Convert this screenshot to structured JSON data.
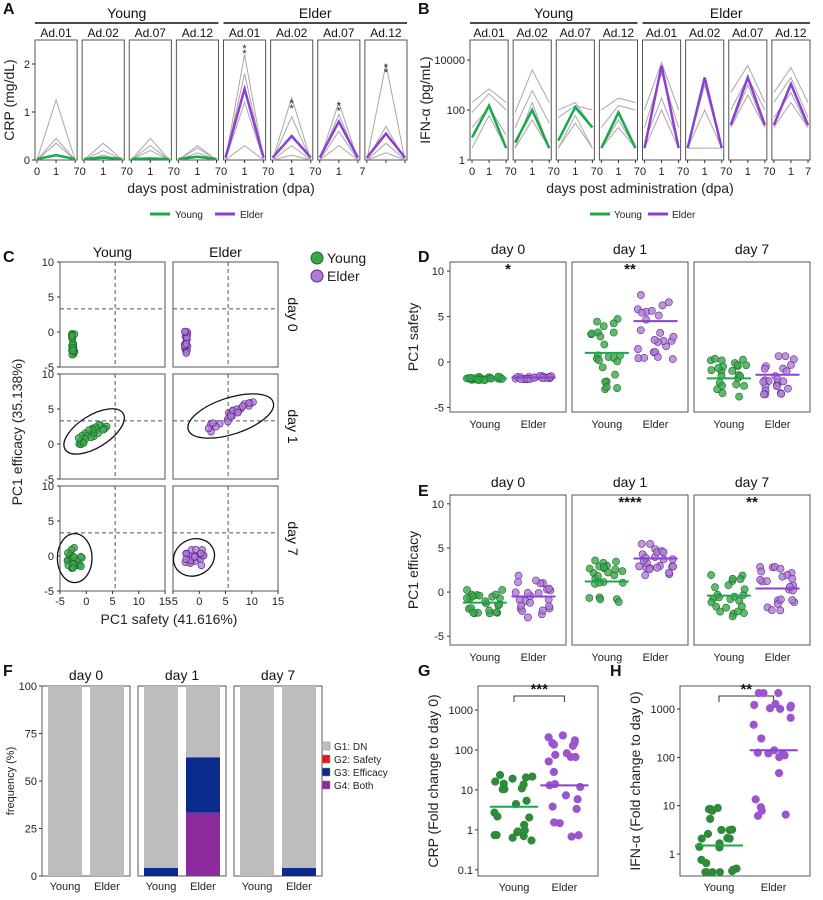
{
  "colors": {
    "young": "#1aa84a",
    "elder": "#8c3fd1",
    "young_pt": "#3aa84a",
    "elder_pt": "#b07ad8",
    "g1": "#bdbdbd",
    "g2": "#e31a1c",
    "g3": "#0a2a8c",
    "g4": "#8e2a9e",
    "gray_line": "#a8a8a8"
  },
  "panel_letters": [
    "A",
    "B",
    "C",
    "D",
    "E",
    "F",
    "G",
    "H"
  ],
  "chart_data": [
    {
      "id": "A",
      "type": "line",
      "groups": [
        "Young",
        "Elder"
      ],
      "subjects": [
        "Ad.01",
        "Ad.02",
        "Ad.07",
        "Ad.12",
        "Ad.01",
        "Ad.02",
        "Ad.07",
        "Ad.12"
      ],
      "x": [
        "0",
        "1",
        "7"
      ],
      "xticks_first": [
        "0",
        "1",
        "7"
      ],
      "xticks_rest": [
        "0",
        "1",
        "70",
        "1",
        "70",
        "1",
        "70",
        "1",
        "70",
        "1",
        "70",
        "1",
        "70",
        "1",
        "7"
      ],
      "xlabel": "days post administration (dpa)",
      "ylabel": "CRP (mg/dL)",
      "ylim": [
        0,
        2.5
      ],
      "yticks": [
        "0",
        "1",
        "2"
      ],
      "legend": [
        "Young",
        "Elder"
      ],
      "mean": [
        [
          0.02,
          0.1,
          0.02
        ],
        [
          0.02,
          0.05,
          0.02
        ],
        [
          0.02,
          0.03,
          0.02
        ],
        [
          0.02,
          0.07,
          0.02
        ],
        [
          0.05,
          1.48,
          0.05
        ],
        [
          0.05,
          0.5,
          0.05
        ],
        [
          0.05,
          0.8,
          0.05
        ],
        [
          0.05,
          0.55,
          0.05
        ]
      ],
      "individual": [
        [
          [
            0,
            1.25,
            0
          ],
          [
            0,
            0.45,
            0
          ],
          [
            0,
            0.35,
            0
          ],
          [
            0,
            0.1,
            0
          ]
        ],
        [
          [
            0,
            0.35,
            0
          ],
          [
            0,
            0.2,
            0
          ],
          [
            0,
            0.05,
            0
          ],
          [
            0,
            0.1,
            0
          ]
        ],
        [
          [
            0,
            0.45,
            0
          ],
          [
            0,
            0.3,
            0
          ],
          [
            0,
            0.05,
            0
          ],
          [
            0,
            0.2,
            0
          ]
        ],
        [
          [
            0,
            0.3,
            0
          ],
          [
            0,
            0.15,
            0
          ],
          [
            0,
            0.05,
            0
          ],
          [
            0,
            0.25,
            0
          ]
        ],
        [
          [
            0,
            2.2,
            0
          ],
          [
            0,
            1.8,
            0
          ],
          [
            0,
            1.2,
            0
          ],
          [
            0,
            0.3,
            0
          ]
        ],
        [
          [
            0,
            1.3,
            0
          ],
          [
            0,
            0.9,
            0
          ],
          [
            0,
            0.3,
            0
          ],
          [
            0,
            0.1,
            0
          ]
        ],
        [
          [
            0,
            1.2,
            0
          ],
          [
            0,
            0.95,
            0
          ],
          [
            0,
            0.6,
            0
          ],
          [
            0,
            0.3,
            0
          ]
        ],
        [
          [
            0,
            2.0,
            0
          ],
          [
            0,
            0.7,
            0
          ],
          [
            0,
            0.35,
            0
          ],
          [
            0,
            0.15,
            0
          ]
        ]
      ],
      "stars": [
        [
          4,
          2.25
        ],
        [
          5,
          1.1
        ],
        [
          6,
          1.05
        ],
        [
          7,
          1.85
        ]
      ]
    },
    {
      "id": "B",
      "type": "line",
      "yscale": "log",
      "groups": [
        "Young",
        "Elder"
      ],
      "subjects": [
        "Ad.01",
        "Ad.02",
        "Ad.07",
        "Ad.12",
        "Ad.01",
        "Ad.02",
        "Ad.07",
        "Ad.12"
      ],
      "x": [
        "0",
        "1",
        "7"
      ],
      "xticks": [
        "0",
        "1",
        "70",
        "1",
        "70",
        "1",
        "70",
        "1",
        "70",
        "1",
        "70",
        "1",
        "70",
        "1",
        "70",
        "1",
        "7"
      ],
      "xlabel": "days post administration (dpa)",
      "ylabel": "IFN-α (pg/mL)",
      "ylim": [
        1,
        40000
      ],
      "yticks": [
        "1",
        "100",
        "10000"
      ],
      "legend": [
        "Young",
        "Elder"
      ],
      "mean": [
        [
          8,
          150,
          3
        ],
        [
          5,
          100,
          3
        ],
        [
          6,
          130,
          20
        ],
        [
          3,
          80,
          3
        ],
        [
          3,
          6000,
          3
        ],
        [
          3,
          2000,
          3
        ],
        [
          25,
          2000,
          25
        ],
        [
          25,
          1100,
          25
        ]
      ],
      "individual": [
        [
          [
            200,
            700,
            200
          ],
          [
            80,
            450,
            100
          ],
          [
            20,
            130,
            10
          ],
          [
            3,
            60,
            3
          ]
        ],
        [
          [
            80,
            4000,
            200
          ],
          [
            20,
            600,
            30
          ],
          [
            3,
            200,
            3
          ],
          [
            3,
            40,
            3
          ]
        ],
        [
          [
            100,
            200,
            20
          ],
          [
            50,
            150,
            100
          ],
          [
            3,
            30,
            3
          ],
          [
            3,
            60,
            3
          ]
        ],
        [
          [
            100,
            300,
            200
          ],
          [
            20,
            150,
            100
          ],
          [
            3,
            40,
            3
          ],
          [
            3,
            20,
            3
          ]
        ]
      ],
      "individual_elder": [
        [
          [
            100,
            8000,
            100
          ],
          [
            20,
            3000,
            20
          ],
          [
            5,
            300,
            5
          ],
          [
            3,
            100,
            3
          ]
        ],
        [
          [
            3,
            2000,
            3
          ],
          [
            3,
            1000,
            3
          ],
          [
            3,
            100,
            3
          ],
          [
            3,
            3,
            3
          ]
        ],
        [
          [
            500,
            6000,
            200
          ],
          [
            100,
            2000,
            100
          ],
          [
            20,
            1000,
            20
          ],
          [
            20,
            400,
            20
          ]
        ],
        [
          [
            500,
            5000,
            200
          ],
          [
            200,
            2000,
            50
          ],
          [
            50,
            500,
            20
          ],
          [
            20,
            200,
            20
          ]
        ]
      ]
    },
    {
      "id": "C",
      "type": "scatter",
      "columns": [
        "Young",
        "Elder"
      ],
      "rows": [
        "day 0",
        "day 1",
        "day 7"
      ],
      "xlabel": "PC1 safety (41.616%)",
      "ylabel": "PC1 efficacy (35.138%)",
      "xlim": [
        -5,
        15
      ],
      "ylim": [
        -5,
        10
      ],
      "xticks": [
        "-5",
        "0",
        "5",
        "10",
        "15"
      ],
      "yticks": [
        "-5",
        "0",
        "5",
        "10"
      ],
      "legend": [
        "Young",
        "Elder"
      ],
      "threshold_x": 5.5,
      "threshold_y": 3.3
    },
    {
      "id": "D",
      "type": "scatter",
      "days": [
        "day 0",
        "day 1",
        "day 7"
      ],
      "groups": [
        "Young",
        "Elder"
      ],
      "ylabel": "PC1 safety",
      "ylim": [
        -5.5,
        11
      ],
      "yticks": [
        "-5",
        "0",
        "5",
        "10"
      ],
      "sig": [
        "*",
        "**",
        ""
      ],
      "medians": [
        [
          -1.8,
          -1.7
        ],
        [
          1.0,
          4.5
        ],
        [
          -1.8,
          -1.4
        ]
      ]
    },
    {
      "id": "E",
      "type": "scatter",
      "days": [
        "day 0",
        "day 1",
        "day 7"
      ],
      "groups": [
        "Young",
        "Elder"
      ],
      "ylabel": "PC1 efficacy",
      "ylim": [
        -6,
        11
      ],
      "yticks": [
        "-5",
        "0",
        "5",
        "10"
      ],
      "sig": [
        "",
        "****",
        "**"
      ],
      "medians": [
        [
          -1.2,
          -0.5
        ],
        [
          1.2,
          3.8
        ],
        [
          -0.4,
          0.4
        ]
      ]
    },
    {
      "id": "F",
      "type": "bar",
      "stacked": true,
      "days": [
        "day 0",
        "day 1",
        "day 7"
      ],
      "categories": [
        "Young",
        "Elder"
      ],
      "ylabel": "frequency (%)",
      "ylim": [
        0,
        100
      ],
      "yticks": [
        "0",
        "25",
        "50",
        "75",
        "100"
      ],
      "legend": [
        "G1: DN",
        "G2: Safety",
        "G3: Efficacy",
        "G4: Both"
      ],
      "series_by_day": [
        [
          {
            "G1": 100,
            "G2": 0,
            "G3": 0,
            "G4": 0
          },
          {
            "G1": 100,
            "G2": 0,
            "G3": 0,
            "G4": 0
          }
        ],
        [
          {
            "G1": 95.8,
            "G2": 0,
            "G3": 4.2,
            "G4": 0
          },
          {
            "G1": 37.5,
            "G2": 0,
            "G3": 29.2,
            "G4": 33.3
          }
        ],
        [
          {
            "G1": 100,
            "G2": 0,
            "G3": 0,
            "G4": 0
          },
          {
            "G1": 95.8,
            "G2": 0,
            "G3": 4.2,
            "G4": 0
          }
        ]
      ]
    },
    {
      "id": "G",
      "type": "scatter",
      "yscale": "log",
      "categories": [
        "Young",
        "Elder"
      ],
      "ylabel": "CRP (Fold change to day 0)",
      "ylim": [
        0.07,
        4000
      ],
      "yticks": [
        "0.1",
        "1",
        "10",
        "100",
        "1000"
      ],
      "sig": "***",
      "medians": [
        3.8,
        13
      ]
    },
    {
      "id": "H",
      "type": "scatter",
      "yscale": "log",
      "categories": [
        "Young",
        "Elder"
      ],
      "ylabel": "IFN-α (Fold change to day 0)",
      "ylim": [
        0.35,
        3000
      ],
      "yticks": [
        "1",
        "10",
        "100",
        "1000"
      ],
      "sig": "**",
      "medians": [
        1.5,
        140
      ]
    }
  ]
}
